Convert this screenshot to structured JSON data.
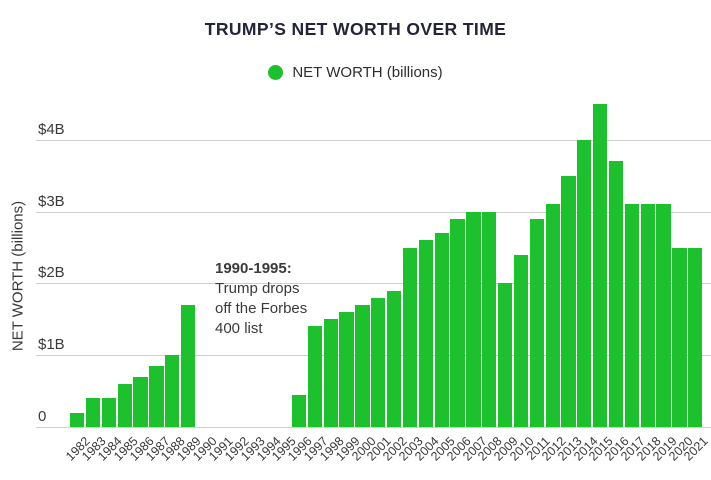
{
  "title": "TRUMP’S NET WORTH OVER TIME",
  "legend": {
    "label": "NET WORTH (billions)",
    "marker_color": "#1cc12d"
  },
  "annotation": {
    "heading": "1990-1995:",
    "line1": "Trump drops",
    "line2": "off the Forbes",
    "line3": "400 list"
  },
  "chart_data": {
    "type": "bar",
    "title": "TRUMP’S NET WORTH OVER TIME",
    "xlabel": "",
    "ylabel": "NET WORTH (billions)",
    "legend_entries": [
      "NET WORTH (billions)"
    ],
    "legend_position": "top",
    "grid": true,
    "bar_color": "#1cc12d",
    "ylim": [
      0,
      4.6
    ],
    "ytick_values": [
      0,
      1,
      2,
      3,
      4
    ],
    "ytick_labels": [
      "0",
      "$1B",
      "$2B",
      "$3B",
      "$4B"
    ],
    "annotation": "1990-1995: Trump drops off the Forbes 400 list",
    "categories": [
      "1982",
      "1983",
      "1984",
      "1985",
      "1986",
      "1987",
      "1988",
      "1989",
      "1990",
      "1991",
      "1992",
      "1993",
      "1994",
      "1995",
      "1996",
      "1997",
      "1998",
      "1999",
      "2000",
      "2001",
      "2002",
      "2003",
      "2004",
      "2005",
      "2006",
      "2007",
      "2008",
      "2009",
      "2010",
      "2011",
      "2012",
      "2013",
      "2014",
      "2015",
      "2016",
      "2017",
      "2018",
      "2019",
      "2020",
      "2021"
    ],
    "values": [
      0.2,
      0.4,
      0.4,
      0.6,
      0.7,
      0.85,
      1.0,
      1.7,
      null,
      null,
      null,
      null,
      null,
      null,
      0.45,
      1.4,
      1.5,
      1.6,
      1.7,
      1.8,
      1.9,
      2.5,
      2.6,
      2.7,
      2.9,
      3.0,
      3.0,
      2.0,
      2.4,
      2.9,
      3.1,
      3.5,
      4.0,
      4.5,
      3.7,
      3.1,
      3.1,
      3.1,
      2.5,
      2.5
    ]
  }
}
